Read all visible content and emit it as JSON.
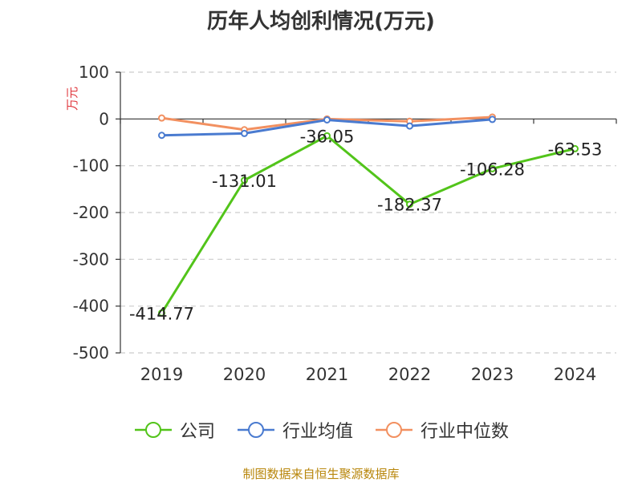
{
  "chart_data": {
    "type": "line",
    "title": "历年人均创利情况(万元)",
    "ylabel": "万元",
    "xlabel": "",
    "categories": [
      "2019",
      "2020",
      "2021",
      "2022",
      "2023",
      "2024"
    ],
    "ylim": [
      -500,
      100
    ],
    "yticks": [
      100,
      0,
      -100,
      -200,
      -300,
      -400,
      -500
    ],
    "grid": true,
    "legend_position": "bottom",
    "series": [
      {
        "name": "公司",
        "color": "#52c41a",
        "values": [
          -414.77,
          -131.01,
          -36.05,
          -182.37,
          -106.28,
          -63.53
        ],
        "labels": [
          "-414.77",
          "-131.01",
          "-36.05",
          "-182.37",
          "-106.28",
          "-63.53"
        ]
      },
      {
        "name": "行业均值",
        "color": "#4a7bd0",
        "values": [
          -35,
          -31,
          -2,
          -15,
          -1,
          null
        ]
      },
      {
        "name": "行业中位数",
        "color": "#f29060",
        "values": [
          2,
          -23,
          0,
          -5,
          4,
          null
        ]
      }
    ]
  },
  "source": "制图数据来自恒生聚源数据库"
}
